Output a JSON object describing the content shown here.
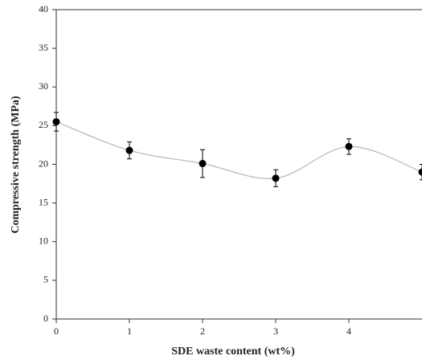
{
  "chart_data": {
    "type": "line",
    "x_label": "SDE waste content (wt%)",
    "y_label": "Compressive strength (MPa)",
    "x": [
      0,
      1,
      2,
      3,
      4,
      5
    ],
    "values": [
      25.5,
      21.8,
      20.1,
      18.2,
      22.3,
      19.0
    ],
    "errors": [
      1.2,
      1.1,
      1.8,
      1.1,
      1.0,
      1.0
    ],
    "color": "#000000",
    "line_color": "#bbbbbb",
    "xlim": [
      0,
      5
    ],
    "xticks": [
      0,
      1,
      2,
      3,
      4
    ],
    "ylim": [
      0,
      40
    ],
    "yticks": [
      0,
      5,
      10,
      15,
      20,
      25,
      30,
      35,
      40
    ],
    "grid": false
  }
}
